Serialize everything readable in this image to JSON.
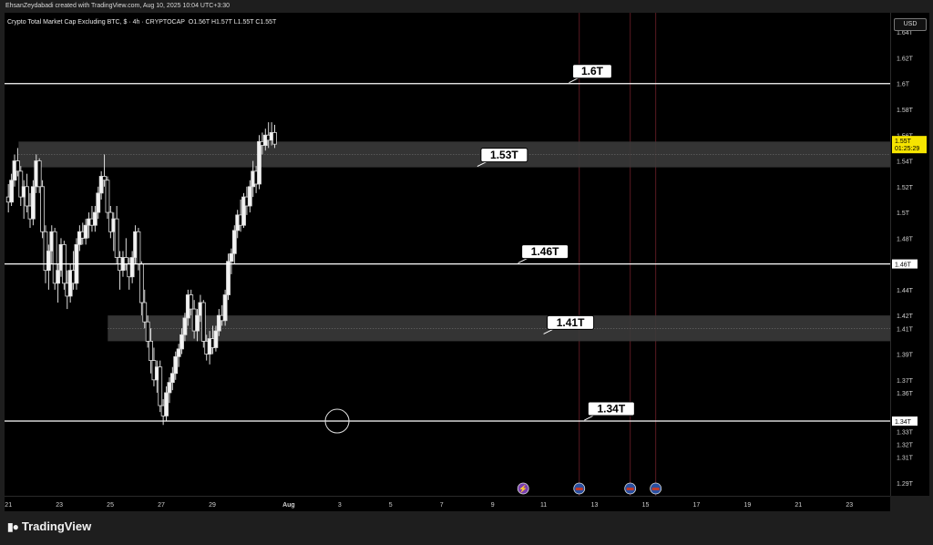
{
  "header": {
    "credit": "EhsanZeydabadi created with TradingView.com, Aug 10, 2025 10:04 UTC+3:30",
    "symbol": "Crypto Total Market Cap Excluding BTC, $ · 4h · CRYPTOCAP",
    "ohlc": "O1.56T  H1.57T  L1.55T  C1.55T",
    "currency": "USD"
  },
  "brand": {
    "name": "TradingView",
    "logo_icon": "tradingview-logo-icon"
  },
  "chart_data": {
    "type": "candlestick",
    "title": "Crypto Total Market Cap Excluding BTC",
    "interval": "4h",
    "ylim": [
      1.28,
      1.655
    ],
    "y_ticks": [
      "1.64T",
      "1.62T",
      "1.6T",
      "1.58T",
      "1.56T",
      "1.54T",
      "1.52T",
      "1.5T",
      "1.48T",
      "1.46T",
      "1.44T",
      "1.42T",
      "1.41T",
      "1.39T",
      "1.37T",
      "1.36T",
      "1.34T",
      "1.33T",
      "1.32T",
      "1.31T",
      "1.29T"
    ],
    "y_tick_values": [
      1.64,
      1.62,
      1.6,
      1.58,
      1.56,
      1.54,
      1.52,
      1.5,
      1.48,
      1.46,
      1.44,
      1.42,
      1.41,
      1.39,
      1.37,
      1.36,
      1.34,
      1.33,
      1.32,
      1.31,
      1.29
    ],
    "x_ticks": [
      {
        "label": "21",
        "day": 0
      },
      {
        "label": "23",
        "day": 2
      },
      {
        "label": "25",
        "day": 4
      },
      {
        "label": "27",
        "day": 6
      },
      {
        "label": "29",
        "day": 8
      },
      {
        "label": "Aug",
        "day": 11
      },
      {
        "label": "3",
        "day": 13
      },
      {
        "label": "5",
        "day": 15
      },
      {
        "label": "7",
        "day": 17
      },
      {
        "label": "9",
        "day": 19
      },
      {
        "label": "11",
        "day": 21
      },
      {
        "label": "13",
        "day": 23
      },
      {
        "label": "15",
        "day": 25
      },
      {
        "label": "17",
        "day": 27
      },
      {
        "label": "19",
        "day": 29
      },
      {
        "label": "21",
        "day": 31
      },
      {
        "label": "23",
        "day": 33
      }
    ],
    "xlim_days": [
      -0.15,
      34.6
    ],
    "last_price": {
      "label": "1.55T",
      "countdown": "01:25:29",
      "value": 1.553
    },
    "horizontal_levels": [
      {
        "value": 1.6,
        "label": "1.6T",
        "axis_label": ""
      },
      {
        "value": 1.46,
        "label": "1.46T",
        "axis_label": "1.46T"
      },
      {
        "value": 1.338,
        "label": "1.34T",
        "axis_label": "1.34T"
      }
    ],
    "zones": [
      {
        "top": 1.555,
        "bottom": 1.535,
        "label": "1.53T",
        "start_day": 0.4
      },
      {
        "top": 1.42,
        "bottom": 1.4,
        "label": "1.41T",
        "start_day": 3.9
      }
    ],
    "event_markers": [
      {
        "day": 20.2,
        "icon": "lightning-icon",
        "color": "#7a3fb0"
      },
      {
        "day": 22.4,
        "icon": "us-flag-icon",
        "color": "#2a4fa0",
        "vline": true
      },
      {
        "day": 24.4,
        "icon": "us-flag-icon",
        "color": "#2a4fa0",
        "vline": true
      },
      {
        "day": 25.4,
        "icon": "us-flag-icon",
        "color": "#2a4fa0",
        "vline": true
      }
    ],
    "circle_marker": {
      "day": 12.9,
      "value": 1.338
    },
    "candles": [
      [
        1.512,
        1.522,
        1.5,
        1.508
      ],
      [
        1.508,
        1.53,
        1.505,
        1.525
      ],
      [
        1.525,
        1.545,
        1.52,
        1.54
      ],
      [
        1.54,
        1.55,
        1.528,
        1.532
      ],
      [
        1.532,
        1.536,
        1.505,
        1.512
      ],
      [
        1.512,
        1.525,
        1.495,
        1.52
      ],
      [
        1.52,
        1.53,
        1.5,
        1.505
      ],
      [
        1.505,
        1.515,
        1.488,
        1.495
      ],
      [
        1.495,
        1.525,
        1.49,
        1.52
      ],
      [
        1.52,
        1.545,
        1.515,
        1.54
      ],
      [
        1.54,
        1.542,
        1.515,
        1.52
      ],
      [
        1.52,
        1.525,
        1.48,
        1.485
      ],
      [
        1.485,
        1.49,
        1.445,
        1.455
      ],
      [
        1.455,
        1.475,
        1.44,
        1.47
      ],
      [
        1.47,
        1.49,
        1.46,
        1.485
      ],
      [
        1.485,
        1.488,
        1.44,
        1.445
      ],
      [
        1.445,
        1.46,
        1.43,
        1.455
      ],
      [
        1.455,
        1.48,
        1.45,
        1.475
      ],
      [
        1.475,
        1.478,
        1.44,
        1.445
      ],
      [
        1.445,
        1.455,
        1.425,
        1.435
      ],
      [
        1.435,
        1.46,
        1.43,
        1.455
      ],
      [
        1.455,
        1.47,
        1.44,
        1.445
      ],
      [
        1.445,
        1.48,
        1.44,
        1.475
      ],
      [
        1.475,
        1.49,
        1.47,
        1.485
      ],
      [
        1.485,
        1.492,
        1.475,
        1.48
      ],
      [
        1.48,
        1.495,
        1.475,
        1.49
      ],
      [
        1.49,
        1.5,
        1.48,
        1.495
      ],
      [
        1.495,
        1.505,
        1.485,
        1.49
      ],
      [
        1.49,
        1.505,
        1.485,
        1.5
      ],
      [
        1.5,
        1.52,
        1.495,
        1.515
      ],
      [
        1.515,
        1.532,
        1.51,
        1.528
      ],
      [
        1.528,
        1.545,
        1.52,
        1.525
      ],
      [
        1.525,
        1.528,
        1.495,
        1.5
      ],
      [
        1.5,
        1.505,
        1.48,
        1.485
      ],
      [
        1.485,
        1.5,
        1.47,
        1.495
      ],
      [
        1.495,
        1.505,
        1.46,
        1.465
      ],
      [
        1.465,
        1.47,
        1.44,
        1.455
      ],
      [
        1.455,
        1.47,
        1.45,
        1.465
      ],
      [
        1.465,
        1.48,
        1.455,
        1.46
      ],
      [
        1.46,
        1.465,
        1.44,
        1.45
      ],
      [
        1.45,
        1.47,
        1.445,
        1.465
      ],
      [
        1.465,
        1.49,
        1.46,
        1.485
      ],
      [
        1.485,
        1.488,
        1.455,
        1.46
      ],
      [
        1.46,
        1.462,
        1.42,
        1.43
      ],
      [
        1.43,
        1.44,
        1.41,
        1.415
      ],
      [
        1.415,
        1.42,
        1.395,
        1.4
      ],
      [
        1.4,
        1.41,
        1.375,
        1.385
      ],
      [
        1.385,
        1.395,
        1.365,
        1.37
      ],
      [
        1.37,
        1.385,
        1.36,
        1.38
      ],
      [
        1.38,
        1.385,
        1.345,
        1.35
      ],
      [
        1.35,
        1.355,
        1.335,
        1.342
      ],
      [
        1.342,
        1.365,
        1.338,
        1.36
      ],
      [
        1.36,
        1.372,
        1.352,
        1.368
      ],
      [
        1.368,
        1.38,
        1.362,
        1.375
      ],
      [
        1.375,
        1.392,
        1.37,
        1.388
      ],
      [
        1.388,
        1.398,
        1.38,
        1.394
      ],
      [
        1.394,
        1.41,
        1.39,
        1.405
      ],
      [
        1.405,
        1.422,
        1.4,
        1.418
      ],
      [
        1.418,
        1.44,
        1.412,
        1.436
      ],
      [
        1.436,
        1.44,
        1.42,
        1.425
      ],
      [
        1.425,
        1.432,
        1.402,
        1.408
      ],
      [
        1.408,
        1.425,
        1.4,
        1.42
      ],
      [
        1.42,
        1.436,
        1.415,
        1.43
      ],
      [
        1.43,
        1.432,
        1.395,
        1.4
      ],
      [
        1.4,
        1.405,
        1.385,
        1.39
      ],
      [
        1.39,
        1.408,
        1.382,
        1.402
      ],
      [
        1.402,
        1.412,
        1.39,
        1.395
      ],
      [
        1.395,
        1.412,
        1.392,
        1.408
      ],
      [
        1.408,
        1.425,
        1.404,
        1.42
      ],
      [
        1.42,
        1.428,
        1.412,
        1.416
      ],
      [
        1.416,
        1.44,
        1.412,
        1.436
      ],
      [
        1.436,
        1.468,
        1.432,
        1.462
      ],
      [
        1.462,
        1.472,
        1.452,
        1.468
      ],
      [
        1.468,
        1.49,
        1.46,
        1.486
      ],
      [
        1.486,
        1.502,
        1.48,
        1.498
      ],
      [
        1.498,
        1.51,
        1.485,
        1.49
      ],
      [
        1.49,
        1.515,
        1.488,
        1.512
      ],
      [
        1.512,
        1.52,
        1.498,
        1.505
      ],
      [
        1.505,
        1.525,
        1.5,
        1.52
      ],
      [
        1.52,
        1.54,
        1.512,
        1.532
      ],
      [
        1.532,
        1.536,
        1.515,
        1.522
      ],
      [
        1.522,
        1.56,
        1.518,
        1.555
      ],
      [
        1.555,
        1.562,
        1.545,
        1.552
      ],
      [
        1.552,
        1.565,
        1.548,
        1.56
      ],
      [
        1.56,
        1.57,
        1.55,
        1.556
      ],
      [
        1.556,
        1.57,
        1.552,
        1.562
      ],
      [
        1.562,
        1.568,
        1.55,
        1.553
      ]
    ]
  }
}
